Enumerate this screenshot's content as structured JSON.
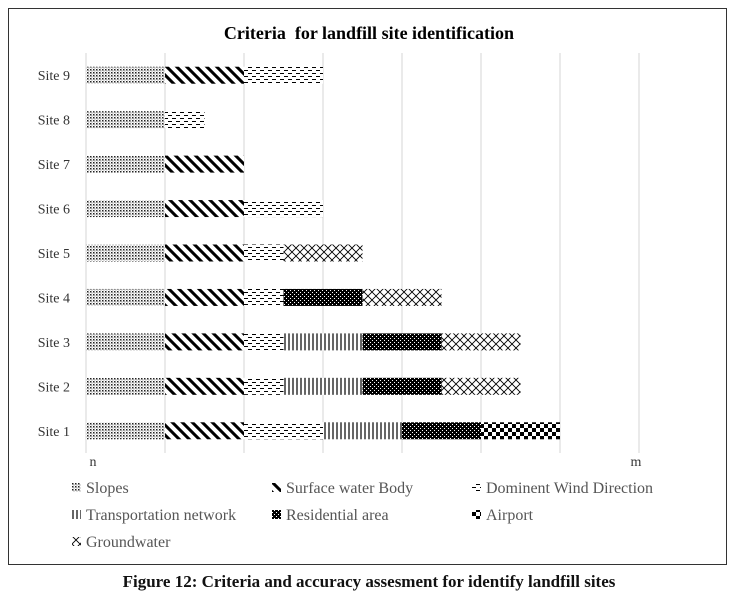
{
  "chart_data": {
    "type": "bar",
    "orientation": "horizontal",
    "stacked": true,
    "title": "Criteria  for landfill site identification",
    "xlabel": "",
    "ylabel": "",
    "x_tick_labels": [
      "n",
      "m"
    ],
    "xlim": [
      0,
      7
    ],
    "grid": true,
    "legend_position": "bottom",
    "categories": [
      "Site 1",
      "Site 2",
      "Site 3",
      "Site 4",
      "Site 5",
      "Site 6",
      "Site 7",
      "Site 8",
      "Site 9"
    ],
    "series": [
      {
        "name": "Slopes",
        "pattern": "dots",
        "values": [
          1,
          1,
          1,
          1,
          1,
          1,
          1,
          1,
          1
        ]
      },
      {
        "name": "Surface water Body",
        "pattern": "diagonal",
        "values": [
          1,
          1,
          1,
          1,
          1,
          1,
          1,
          0,
          1
        ]
      },
      {
        "name": "Dominent Wind Direction",
        "pattern": "dashes",
        "values": [
          1,
          0.5,
          0.5,
          0.5,
          0.5,
          1,
          0,
          0.5,
          1
        ]
      },
      {
        "name": "Transportation network",
        "pattern": "vertical",
        "values": [
          1,
          1,
          1,
          0,
          0,
          0,
          0,
          0,
          0
        ]
      },
      {
        "name": "Residential area",
        "pattern": "dense",
        "values": [
          1,
          1,
          1,
          1,
          0,
          0,
          0,
          0,
          0
        ]
      },
      {
        "name": "Airport",
        "pattern": "checker",
        "values": [
          1,
          0,
          0,
          0,
          0,
          0,
          0,
          0,
          0
        ]
      },
      {
        "name": "Groundwater",
        "pattern": "cross",
        "values": [
          0,
          1,
          1,
          1,
          1,
          0,
          0,
          0,
          0
        ]
      }
    ]
  },
  "caption": "Figure 12: Criteria and accuracy assesment for identify landfill sites"
}
